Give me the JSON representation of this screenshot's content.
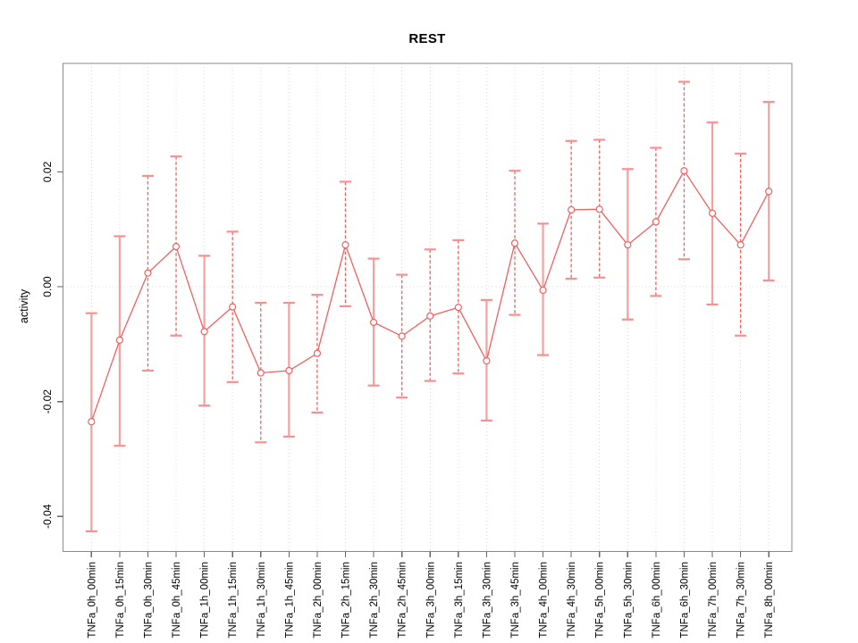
{
  "chart_data": {
    "type": "line",
    "subtype": "points-with-error-bars",
    "title": "REST",
    "ylabel": "activity",
    "xlabel": "",
    "legend": "none",
    "grid": {
      "vertical": "dotted line at every category",
      "horizontal": "dotted line at y=0 only"
    },
    "point_marker": "open-circle",
    "ylim": [
      -0.0461,
      0.0389
    ],
    "yticks": [
      {
        "value": 0.02,
        "label": "0.02"
      },
      {
        "value": 0.0,
        "label": "0.00"
      },
      {
        "value": -0.02,
        "label": "-0.02"
      },
      {
        "value": -0.04,
        "label": "-0.04"
      }
    ],
    "categories": [
      "TNFa_0h_00min",
      "TNFa_0h_15min",
      "TNFa_0h_30min",
      "TNFa_0h_45min",
      "TNFa_1h_00min",
      "TNFa_1h_15min",
      "TNFa_1h_30min",
      "TNFa_1h_45min",
      "TNFa_2h_00min",
      "TNFa_2h_15min",
      "TNFa_2h_30min",
      "TNFa_2h_45min",
      "TNFa_3h_00min",
      "TNFa_3h_15min",
      "TNFa_3h_30min",
      "TNFa_3h_45min",
      "TNFa_4h_00min",
      "TNFa_4h_30min",
      "TNFa_5h_00min",
      "TNFa_5h_30min",
      "TNFa_6h_00min",
      "TNFa_6h_30min",
      "TNFa_7h_00min",
      "TNFa_7h_30min",
      "TNFa_8h_00min"
    ],
    "series": [
      {
        "name": "activity",
        "points": [
          {
            "label": "TNFa_0h_00min",
            "value": -0.0235,
            "low": -0.0426,
            "high": -0.0046,
            "bar_style": "solid"
          },
          {
            "label": "TNFa_0h_15min",
            "value": -0.0093,
            "low": -0.0277,
            "high": 0.0088,
            "bar_style": "solid"
          },
          {
            "label": "TNFa_0h_30min",
            "value": 0.0024,
            "low": -0.0146,
            "high": 0.0193,
            "bar_style": "dashed"
          },
          {
            "label": "TNFa_0h_45min",
            "value": 0.007,
            "low": -0.0085,
            "high": 0.0227,
            "bar_style": "dashed"
          },
          {
            "label": "TNFa_1h_00min",
            "value": -0.0078,
            "low": -0.0207,
            "high": 0.0054,
            "bar_style": "solid"
          },
          {
            "label": "TNFa_1h_15min",
            "value": -0.0035,
            "low": -0.0166,
            "high": 0.0096,
            "bar_style": "dashed"
          },
          {
            "label": "TNFa_1h_30min",
            "value": -0.015,
            "low": -0.0271,
            "high": -0.0028,
            "bar_style": "dashed"
          },
          {
            "label": "TNFa_1h_45min",
            "value": -0.0146,
            "low": -0.0261,
            "high": -0.0028,
            "bar_style": "solid"
          },
          {
            "label": "TNFa_2h_00min",
            "value": -0.0116,
            "low": -0.0219,
            "high": -0.0014,
            "bar_style": "dashed"
          },
          {
            "label": "TNFa_2h_15min",
            "value": 0.0073,
            "low": -0.0034,
            "high": 0.0183,
            "bar_style": "dashed"
          },
          {
            "label": "TNFa_2h_30min",
            "value": -0.0062,
            "low": -0.0172,
            "high": 0.0049,
            "bar_style": "solid"
          },
          {
            "label": "TNFa_2h_45min",
            "value": -0.0086,
            "low": -0.0193,
            "high": 0.0021,
            "bar_style": "dashed"
          },
          {
            "label": "TNFa_3h_00min",
            "value": -0.0051,
            "low": -0.0164,
            "high": 0.0065,
            "bar_style": "dashed"
          },
          {
            "label": "TNFa_3h_15min",
            "value": -0.0036,
            "low": -0.0151,
            "high": 0.0081,
            "bar_style": "dashed"
          },
          {
            "label": "TNFa_3h_30min",
            "value": -0.0129,
            "low": -0.0233,
            "high": -0.0023,
            "bar_style": "solid"
          },
          {
            "label": "TNFa_3h_45min",
            "value": 0.0076,
            "low": -0.0049,
            "high": 0.0202,
            "bar_style": "dashed"
          },
          {
            "label": "TNFa_4h_00min",
            "value": -0.0006,
            "low": -0.0119,
            "high": 0.011,
            "bar_style": "solid"
          },
          {
            "label": "TNFa_4h_30min",
            "value": 0.0134,
            "low": 0.0014,
            "high": 0.0254,
            "bar_style": "dashed"
          },
          {
            "label": "TNFa_5h_00min",
            "value": 0.0135,
            "low": 0.0016,
            "high": 0.0256,
            "bar_style": "dashed"
          },
          {
            "label": "TNFa_5h_30min",
            "value": 0.0073,
            "low": -0.0057,
            "high": 0.0205,
            "bar_style": "solid"
          },
          {
            "label": "TNFa_6h_00min",
            "value": 0.0113,
            "low": -0.0016,
            "high": 0.0242,
            "bar_style": "dashed"
          },
          {
            "label": "TNFa_6h_30min",
            "value": 0.0202,
            "low": 0.0048,
            "high": 0.0357,
            "bar_style": "dashed"
          },
          {
            "label": "TNFa_7h_00min",
            "value": 0.0128,
            "low": -0.0031,
            "high": 0.0286,
            "bar_style": "solid"
          },
          {
            "label": "TNFa_7h_30min",
            "value": 0.0073,
            "low": -0.0085,
            "high": 0.0232,
            "bar_style": "dashed"
          },
          {
            "label": "TNFa_8h_00min",
            "value": 0.0166,
            "low": 0.0011,
            "high": 0.0322,
            "bar_style": "solid"
          }
        ]
      }
    ],
    "colors": {
      "line": "#f0605f",
      "cap": "#f79090",
      "solid_bar": "#f7a0a0",
      "grid": "#dcdcdc",
      "zero_line": "#d8d8d8",
      "box": "#8a8a8a",
      "tick": "#666666",
      "text": "#000000",
      "background": "#ffffff"
    }
  }
}
